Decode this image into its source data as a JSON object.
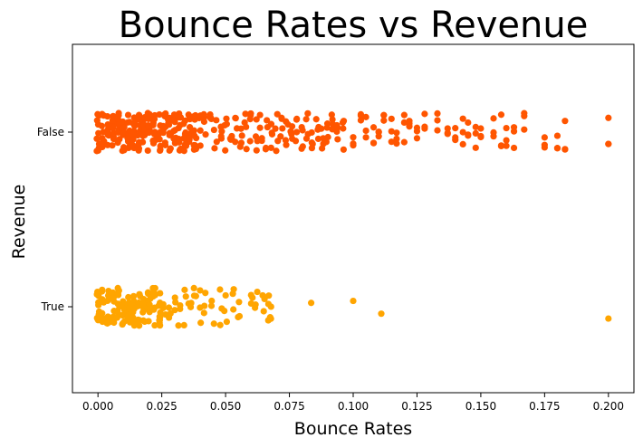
{
  "chart_data": {
    "type": "scatter",
    "subtype": "strip",
    "title": "Bounce Rates vs Revenue",
    "xlabel": "Bounce Rates",
    "ylabel": "Revenue",
    "xlim": [
      -0.01,
      0.21
    ],
    "x_ticks": [
      0.0,
      0.025,
      0.05,
      0.075,
      0.1,
      0.125,
      0.15,
      0.175,
      0.2
    ],
    "x_tick_labels": [
      "0.000",
      "0.025",
      "0.050",
      "0.075",
      "0.100",
      "0.125",
      "0.150",
      "0.175",
      "0.200"
    ],
    "categories": [
      "False",
      "True"
    ],
    "grid": false,
    "series": [
      {
        "category": "False",
        "color": "#ff5500",
        "values": [
          0.0,
          0.002,
          0.004,
          0.006,
          0.008,
          0.01,
          0.012,
          0.014,
          0.016,
          0.018,
          0.02,
          0.022,
          0.024,
          0.026,
          0.028,
          0.03,
          0.032,
          0.034,
          0.036,
          0.038,
          0.04,
          0.042,
          0.044,
          0.046,
          0.048,
          0.05,
          0.052,
          0.054,
          0.056,
          0.058,
          0.06,
          0.062,
          0.064,
          0.066,
          0.068,
          0.07,
          0.072,
          0.074,
          0.076,
          0.078,
          0.08,
          0.082,
          0.084,
          0.086,
          0.088,
          0.09,
          0.092,
          0.094,
          0.096,
          0.1,
          0.103,
          0.105,
          0.108,
          0.11,
          0.112,
          0.115,
          0.117,
          0.12,
          0.122,
          0.125,
          0.128,
          0.133,
          0.137,
          0.14,
          0.143,
          0.145,
          0.148,
          0.15,
          0.155,
          0.158,
          0.16,
          0.163,
          0.167,
          0.175,
          0.18,
          0.183,
          0.2
        ]
      },
      {
        "category": "True",
        "color": "#ffa500",
        "values": [
          0.0,
          0.002,
          0.004,
          0.006,
          0.008,
          0.01,
          0.012,
          0.014,
          0.016,
          0.018,
          0.02,
          0.022,
          0.024,
          0.026,
          0.028,
          0.03,
          0.032,
          0.034,
          0.036,
          0.038,
          0.04,
          0.042,
          0.045,
          0.048,
          0.05,
          0.053,
          0.055,
          0.06,
          0.062,
          0.065,
          0.067,
          0.068,
          0.083,
          0.1,
          0.111,
          0.2
        ]
      }
    ]
  }
}
